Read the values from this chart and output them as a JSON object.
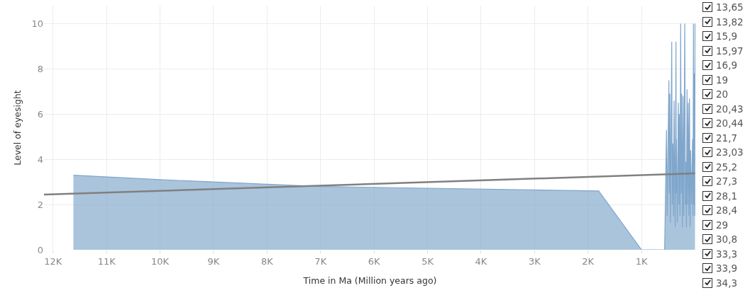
{
  "chart_data": {
    "type": "area",
    "xlabel": "Time in Ma (Million years ago)",
    "ylabel": "Level of eyesight",
    "xlim": [
      12170,
      -20
    ],
    "ylim": [
      0,
      10.8
    ],
    "xticks": [
      {
        "value": 12000,
        "label": "12K"
      },
      {
        "value": 11000,
        "label": "11K"
      },
      {
        "value": 10000,
        "label": "10K"
      },
      {
        "value": 9000,
        "label": "9K"
      },
      {
        "value": 8000,
        "label": "8K"
      },
      {
        "value": 7000,
        "label": "7K"
      },
      {
        "value": 6000,
        "label": "6K"
      },
      {
        "value": 5000,
        "label": "5K"
      },
      {
        "value": 4000,
        "label": "4K"
      },
      {
        "value": 3000,
        "label": "3K"
      },
      {
        "value": 2000,
        "label": "2K"
      },
      {
        "value": 1000,
        "label": "1K"
      }
    ],
    "yticks": [
      0,
      2,
      4,
      6,
      8,
      10
    ],
    "grid": true,
    "marker": "none",
    "series": [
      {
        "color": "#7fa6cb",
        "x": [
          11620,
          10000,
          7000,
          1800,
          1000,
          570,
          568,
          533,
          520,
          488,
          480,
          471,
          460,
          435,
          425,
          414,
          400,
          391,
          370,
          356,
          350,
          347,
          330,
          312,
          300,
          294,
          280,
          268,
          258,
          249,
          235,
          223,
          210,
          192,
          180,
          170,
          160,
          149,
          138,
          126,
          115,
          103,
          92,
          82,
          65,
          46,
          38,
          29,
          20,
          11,
          5,
          0
        ],
        "values": [
          3.3,
          3.1,
          2.8,
          2.6,
          0,
          0,
          0,
          5.3,
          1.5,
          7.5,
          2.5,
          6.9,
          1.2,
          9.2,
          2,
          4.7,
          1.5,
          6.6,
          1,
          9.2,
          2.5,
          4.9,
          1.2,
          6.5,
          2,
          6,
          1.5,
          10,
          2.5,
          6.9,
          1,
          6.8,
          1.5,
          10,
          2,
          3.9,
          1,
          7.1,
          2,
          6.5,
          1.5,
          6.7,
          1,
          4.4,
          2,
          4.9,
          1.5,
          10,
          2,
          7.8,
          1.5,
          10
        ]
      },
      {
        "type": "line",
        "color": "#808080",
        "x": [
          12170,
          0
        ],
        "values": [
          2.44,
          3.38
        ]
      }
    ],
    "annotations": [
      "13,65",
      "13,82",
      "15,9",
      "15,97",
      "16,9",
      "19",
      "20",
      "20,43",
      "20,44",
      "21,7",
      "23,03",
      "25,2",
      "27,3",
      "28,1",
      "28,4",
      "29",
      "30,8",
      "33,3",
      "33,9",
      "34,3"
    ]
  }
}
